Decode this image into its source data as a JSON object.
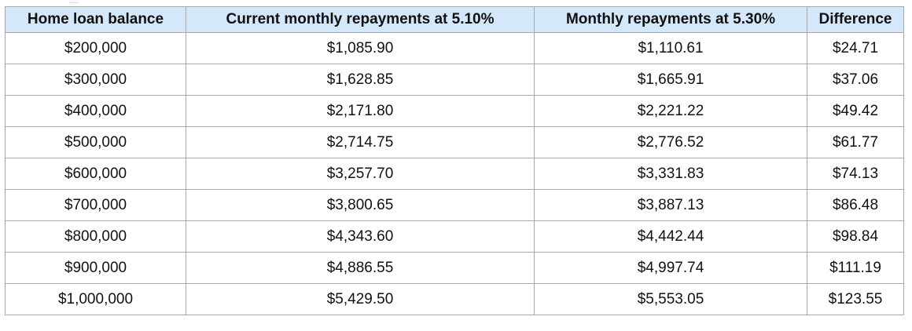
{
  "table": {
    "headers": [
      "Home loan balance",
      "Current monthly repayments at 5.10%",
      "Monthly repayments at 5.30%",
      "Difference"
    ],
    "rows": [
      [
        "$200,000",
        "$1,085.90",
        "$1,110.61",
        "$24.71"
      ],
      [
        "$300,000",
        "$1,628.85",
        "$1,665.91",
        "$37.06"
      ],
      [
        "$400,000",
        "$2,171.80",
        "$2,221.22",
        "$49.42"
      ],
      [
        "$500,000",
        "$2,714.75",
        "$2,776.52",
        "$61.77"
      ],
      [
        "$600,000",
        "$3,257.70",
        "$3,331.83",
        "$74.13"
      ],
      [
        "$700,000",
        "$3,800.65",
        "$3,887.13",
        "$86.48"
      ],
      [
        "$800,000",
        "$4,343.60",
        "$4,442.44",
        "$98.84"
      ],
      [
        "$900,000",
        "$4,886.55",
        "$4,997.74",
        "$111.19"
      ],
      [
        "$1,000,000",
        "$5,429.50",
        "$5,553.05",
        "$123.55"
      ]
    ]
  },
  "colors": {
    "header_background": "#d5e7fa",
    "border": "#a8a8a8",
    "text": "#111111"
  }
}
